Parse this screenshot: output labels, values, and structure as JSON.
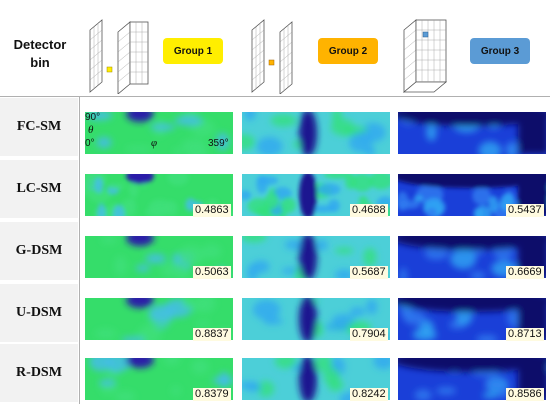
{
  "header": {
    "detector_label_line1": "Detector",
    "detector_label_line2": "bin",
    "groups": [
      {
        "label": "Group 1",
        "color": "#ffee00"
      },
      {
        "label": "Group 2",
        "color": "#ffb300"
      },
      {
        "label": "Group 3",
        "color": "#5b9bd5"
      }
    ]
  },
  "axis_annotations": {
    "theta_max": "90°",
    "theta_symbol": "θ",
    "theta_min": "0°",
    "phi_symbol": "φ",
    "phi_max": "359°"
  },
  "rows": [
    {
      "label": "FC-SM",
      "scores": [
        "",
        "",
        ""
      ]
    },
    {
      "label": "LC-SM",
      "scores": [
        "0.4863",
        "0.4688",
        "0.5437"
      ]
    },
    {
      "label": "G-DSM",
      "scores": [
        "0.5063",
        "0.5687",
        "0.6669"
      ]
    },
    {
      "label": "U-DSM",
      "scores": [
        "0.8837",
        "0.7904",
        "0.8713"
      ]
    },
    {
      "label": "R-DSM",
      "scores": [
        "0.8379",
        "0.8242",
        "0.8586"
      ]
    }
  ],
  "colors": {
    "row_bg": "#f2f2f2",
    "divider": "#b0b0b0"
  }
}
